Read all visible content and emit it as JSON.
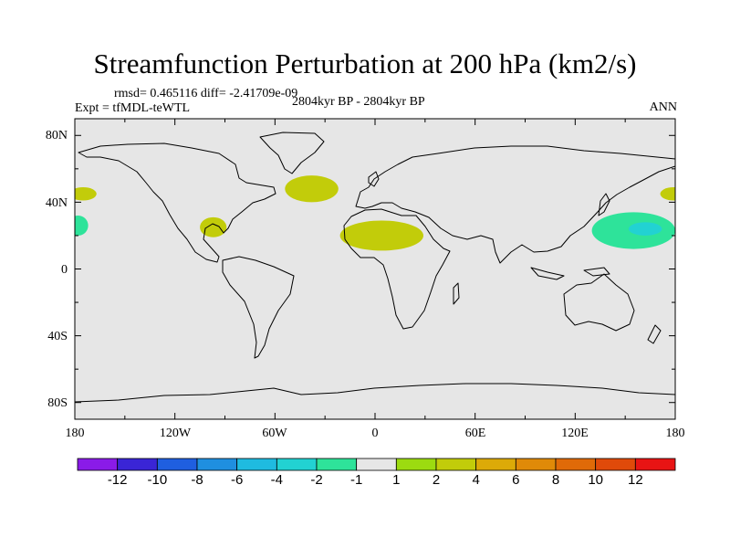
{
  "title": "Streamfunction Perturbation at 200 hPa (km2/s)",
  "stats": "rmsd= 0.465116 diff= -2.41709e-09",
  "expt": "Expt = tfMDL-teWTL",
  "period": "2804kyr BP - 2804kyr BP",
  "season": "ANN",
  "lat_labels": [
    "80N",
    "40N",
    "0",
    "40S",
    "80S"
  ],
  "lon_labels": [
    "180",
    "120W",
    "60W",
    "0",
    "60E",
    "120E",
    "180"
  ],
  "colorbar": {
    "labels": [
      "-12",
      "-10",
      "-8",
      "-6",
      "-4",
      "-2",
      "-1",
      "1",
      "2",
      "4",
      "6",
      "8",
      "10",
      "12"
    ],
    "colors": [
      "#8a1be8",
      "#3a25d6",
      "#1f5fe0",
      "#1f8fe0",
      "#1fbbe0",
      "#22d2d2",
      "#2ee39a",
      "#e6e6e6",
      "#9cdb10",
      "#c2cc0a",
      "#dcaa08",
      "#e08a08",
      "#e06a08",
      "#e04a0a",
      "#e81414"
    ]
  },
  "fields": [
    {
      "name": "north-atlantic-positive",
      "lon": -38,
      "lat": 48,
      "value": 2
    },
    {
      "name": "north-africa-positive",
      "lon": 4,
      "lat": 20,
      "value": 2
    },
    {
      "name": "gulf-of-mexico-positive",
      "lon": -97,
      "lat": 25,
      "value": 2
    },
    {
      "name": "north-pacific-west-positive",
      "lon": -175,
      "lat": 45,
      "value": 2
    },
    {
      "name": "north-pacific-east-positive",
      "lon": 179,
      "lat": 45,
      "value": 2
    },
    {
      "name": "northwest-pacific-negative",
      "lon": 155,
      "lat": 23,
      "value": -2
    },
    {
      "name": "northwest-pacific-negative-core",
      "lon": 162,
      "lat": 24,
      "value": -4
    },
    {
      "name": "subtropical-pacific-negative",
      "lon": -178,
      "lat": 26,
      "value": -2
    }
  ]
}
